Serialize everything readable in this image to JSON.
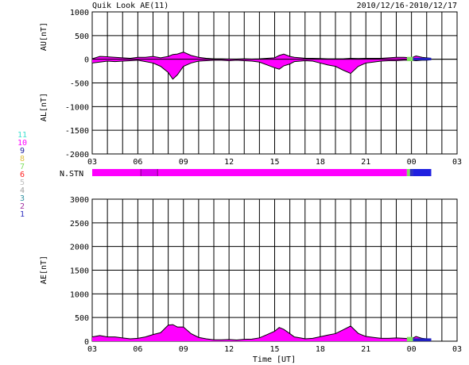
{
  "header": {
    "title": "Quik Look AE(11)",
    "date_range": "2010/12/16-2010/12/17"
  },
  "station_legend": {
    "items": [
      {
        "label": "11",
        "color": "#40e0d0"
      },
      {
        "label": "10",
        "color": "#ff00ff"
      },
      {
        "label": "9",
        "color": "#2020a0"
      },
      {
        "label": "8",
        "color": "#e0c040"
      },
      {
        "label": "7",
        "color": "#80e060"
      },
      {
        "label": "6",
        "color": "#ff2020"
      },
      {
        "label": "5",
        "color": "#c0c0c0"
      },
      {
        "label": "4",
        "color": "#a0a0a0"
      },
      {
        "label": "3",
        "color": "#3090a0"
      },
      {
        "label": "2",
        "color": "#a030a0"
      },
      {
        "label": "1",
        "color": "#3030c0"
      }
    ]
  },
  "chart_data": [
    {
      "type": "area",
      "name": "AU/AL",
      "ylabel_top": "AU[nT]",
      "ylabel_bottom": "AL[nT]",
      "ylim": [
        -2000,
        1000
      ],
      "yticks": [
        1000,
        500,
        0,
        -500,
        -1000,
        -1500,
        -2000
      ],
      "xlim": [
        3,
        27
      ],
      "xticks": [
        "03",
        "06",
        "09",
        "12",
        "15",
        "18",
        "21",
        "00",
        "03"
      ],
      "grid": true,
      "fill_color": "#ff00ff",
      "au_series": {
        "x": [
          3.0,
          3.5,
          4.0,
          4.5,
          5.0,
          5.5,
          6.0,
          6.5,
          7.0,
          7.5,
          8.0,
          8.3,
          8.6,
          9.0,
          9.5,
          10.0,
          10.5,
          11.0,
          11.5,
          12.0,
          12.5,
          13.0,
          13.5,
          14.0,
          14.5,
          15.0,
          15.3,
          15.6,
          16.0,
          16.3,
          16.7,
          17.0,
          17.5,
          18.0,
          18.5,
          19.0,
          19.5,
          20.0,
          20.5,
          21.0,
          21.5,
          22.0,
          22.5,
          23.0,
          23.5,
          24.0,
          24.3,
          24.7,
          25.0,
          25.3
        ],
        "y": [
          10,
          60,
          50,
          40,
          30,
          20,
          40,
          40,
          60,
          30,
          60,
          100,
          110,
          150,
          80,
          40,
          20,
          10,
          10,
          5,
          5,
          10,
          5,
          10,
          20,
          30,
          80,
          110,
          60,
          40,
          30,
          20,
          20,
          15,
          10,
          10,
          10,
          20,
          15,
          20,
          20,
          20,
          30,
          40,
          40,
          30,
          70,
          40,
          30,
          20
        ]
      },
      "al_series": {
        "x": [
          3.0,
          3.5,
          4.0,
          4.5,
          5.0,
          5.5,
          6.0,
          6.5,
          7.0,
          7.5,
          8.0,
          8.3,
          8.6,
          9.0,
          9.5,
          10.0,
          10.5,
          11.0,
          11.5,
          12.0,
          12.5,
          13.0,
          13.5,
          14.0,
          14.5,
          15.0,
          15.3,
          15.6,
          16.0,
          16.3,
          16.7,
          17.0,
          17.5,
          18.0,
          18.5,
          19.0,
          19.5,
          20.0,
          20.5,
          21.0,
          21.5,
          22.0,
          22.5,
          23.0,
          23.5,
          24.0,
          24.3,
          24.7,
          25.0,
          25.3
        ],
        "y": [
          -80,
          -60,
          -40,
          -50,
          -40,
          -30,
          -20,
          -50,
          -80,
          -150,
          -280,
          -420,
          -330,
          -150,
          -80,
          -40,
          -30,
          -20,
          -20,
          -30,
          -20,
          -30,
          -40,
          -60,
          -120,
          -180,
          -210,
          -140,
          -100,
          -50,
          -40,
          -30,
          -40,
          -80,
          -120,
          -150,
          -230,
          -300,
          -150,
          -80,
          -60,
          -40,
          -30,
          -30,
          -20,
          -20,
          -30,
          -20,
          -20,
          -10
        ]
      },
      "late_segment": {
        "color_green": "#80e060",
        "color_blue": "#2020c0",
        "x_green": [
          23.7,
          24.1
        ],
        "x_blue": [
          24.1,
          25.3
        ]
      }
    },
    {
      "type": "area",
      "name": "AE",
      "ylabel": "AE[nT]",
      "xlabel": "Time [UT]",
      "ylim": [
        0,
        3000
      ],
      "yticks": [
        3000,
        2500,
        2000,
        1500,
        1000,
        500,
        0
      ],
      "xlim": [
        3,
        27
      ],
      "xticks": [
        "03",
        "06",
        "09",
        "12",
        "15",
        "18",
        "21",
        "00",
        "03"
      ],
      "grid": true,
      "fill_color": "#ff00ff",
      "series": {
        "x": [
          3.0,
          3.5,
          4.0,
          4.5,
          5.0,
          5.5,
          6.0,
          6.5,
          7.0,
          7.5,
          8.0,
          8.3,
          8.6,
          9.0,
          9.5,
          10.0,
          10.5,
          11.0,
          11.5,
          12.0,
          12.5,
          13.0,
          13.5,
          14.0,
          14.5,
          15.0,
          15.3,
          15.6,
          16.0,
          16.3,
          16.7,
          17.0,
          17.5,
          18.0,
          18.5,
          19.0,
          19.5,
          20.0,
          20.5,
          21.0,
          21.5,
          22.0,
          22.5,
          23.0,
          23.5,
          24.0,
          24.3,
          24.7,
          25.0,
          25.3
        ],
        "y": [
          90,
          120,
          90,
          90,
          70,
          50,
          60,
          90,
          140,
          180,
          340,
          350,
          300,
          300,
          160,
          80,
          50,
          30,
          30,
          35,
          25,
          40,
          45,
          70,
          140,
          210,
          290,
          250,
          160,
          90,
          70,
          50,
          60,
          95,
          130,
          160,
          240,
          320,
          165,
          100,
          80,
          60,
          60,
          70,
          60,
          50,
          100,
          60,
          50,
          30
        ]
      }
    }
  ],
  "station_bar": {
    "label": "N.STN",
    "segments": [
      {
        "from": 3.0,
        "to": 6.2,
        "station": "10",
        "color": "#ff00ff"
      },
      {
        "from": 6.2,
        "to": 7.3,
        "station": "10",
        "color": "#e000f0"
      },
      {
        "from": 7.3,
        "to": 23.7,
        "station": "10",
        "color": "#ff00ff"
      },
      {
        "from": 23.7,
        "to": 23.9,
        "station": "7",
        "color": "#80e060"
      },
      {
        "from": 23.9,
        "to": 24.1,
        "station": "1",
        "color": "#3030c0"
      },
      {
        "from": 24.1,
        "to": 25.3,
        "station": "1",
        "color": "#2020e0"
      }
    ]
  }
}
